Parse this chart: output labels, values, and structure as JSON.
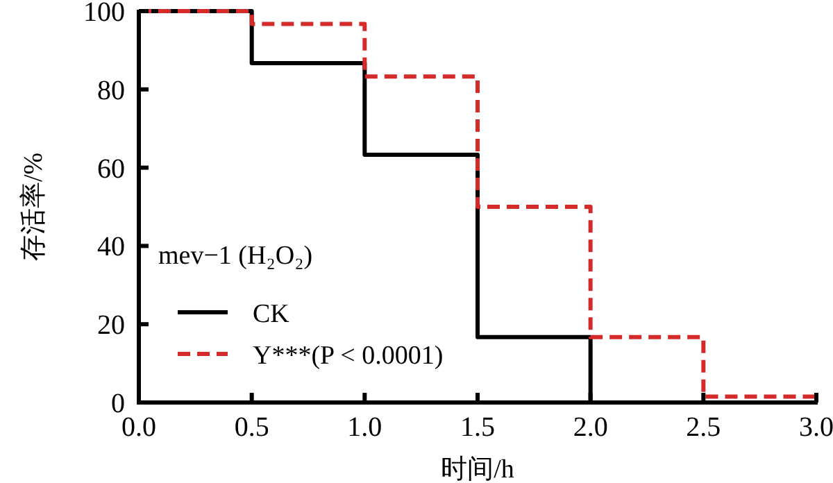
{
  "chart_data": {
    "type": "step",
    "xlabel": "时间/h",
    "ylabel": "存活率/%",
    "legend_title": "mev−1 (H₂O₂)",
    "legend": "bottom left",
    "grid": false,
    "x": [
      0,
      0.5,
      1,
      1.5,
      2,
      2.5,
      3
    ],
    "series": [
      {
        "name": "CK",
        "color": "#000000",
        "line_style": "solid",
        "values": [
          100,
          86.7,
          63.3,
          16.7,
          0,
          0,
          0
        ]
      },
      {
        "name": "Y***(P < 0.0001)",
        "color": "#d42a2a",
        "line_style": "dashed",
        "values": [
          100,
          96.7,
          83.3,
          50,
          16.7,
          1.5,
          1.5
        ]
      }
    ],
    "xlim": [
      0,
      3
    ],
    "xticks": [
      {
        "value": 0,
        "label": "0.0"
      },
      {
        "value": 0.5,
        "label": "0.5"
      },
      {
        "value": 1,
        "label": "1.0"
      },
      {
        "value": 1.5,
        "label": "1.5"
      },
      {
        "value": 2,
        "label": "2.0"
      },
      {
        "value": 2.5,
        "label": "2.5"
      },
      {
        "value": 3,
        "label": "3.0"
      }
    ],
    "ylim": [
      0,
      100
    ],
    "yticks": [
      0,
      20,
      40,
      60,
      80,
      100
    ]
  }
}
